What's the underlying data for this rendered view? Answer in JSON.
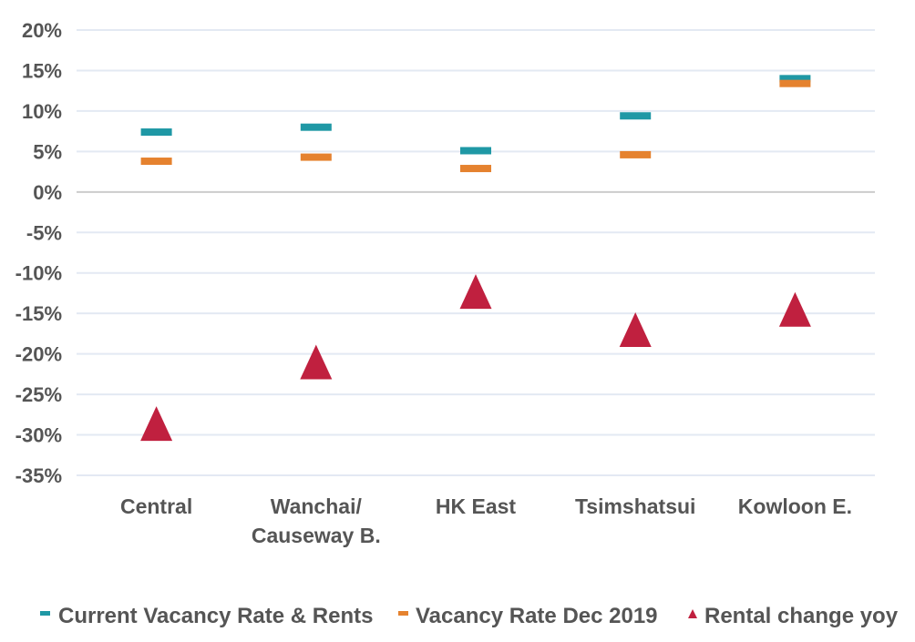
{
  "chart_data": {
    "type": "scatter",
    "categories": [
      [
        "Central"
      ],
      [
        "Wanchai/",
        "Causeway B."
      ],
      [
        "HK East"
      ],
      [
        "Tsimshatsui"
      ],
      [
        "Kowloon E."
      ]
    ],
    "series": [
      {
        "name": "Current Vacancy Rate & Rents",
        "marker": "dash",
        "color": "#1f98a5",
        "values": [
          7.4,
          8.0,
          5.1,
          9.4,
          14.0
        ]
      },
      {
        "name": "Vacancy Rate Dec 2019",
        "marker": "dash",
        "color": "#e5822f",
        "values": [
          3.8,
          4.3,
          2.9,
          4.6,
          13.4
        ]
      },
      {
        "name": "Rental change yoy",
        "marker": "triangle",
        "color": "#c0203f",
        "values": [
          -28.6,
          -21.0,
          -12.3,
          -17.0,
          -14.5
        ]
      }
    ],
    "ylim": [
      -35,
      20
    ],
    "yticks": [
      20,
      15,
      10,
      5,
      0,
      -5,
      -10,
      -15,
      -20,
      -25,
      -30,
      -35
    ],
    "ytick_labels": [
      "20%",
      "15%",
      "10%",
      "5%",
      "0%",
      "-5%",
      "-10%",
      "-15%",
      "-20%",
      "-25%",
      "-30%",
      "-35%"
    ],
    "grid": true,
    "legend_position": "bottom",
    "title": "",
    "xlabel": "",
    "ylabel": ""
  }
}
